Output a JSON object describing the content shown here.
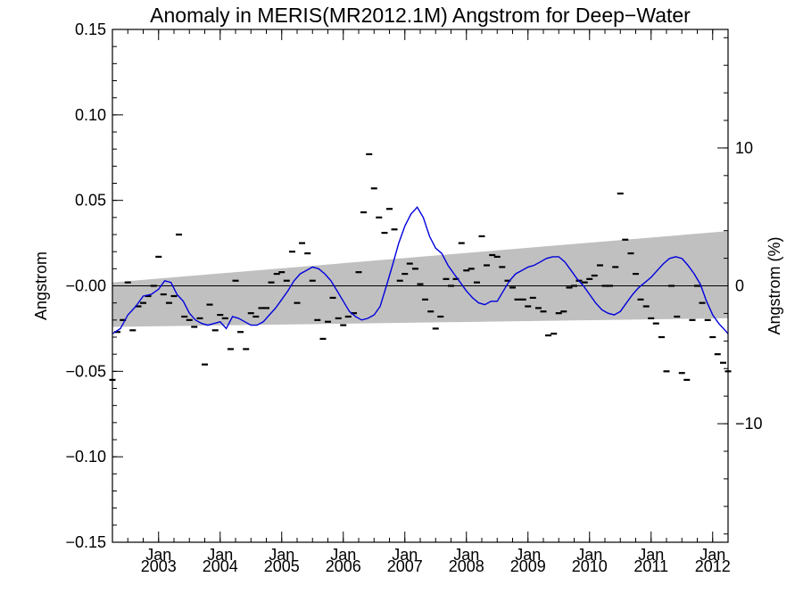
{
  "chart_data": {
    "type": "line",
    "title": "Anomaly in MERIS(MR2012.1M) Angstrom for Deep−Water",
    "ylabel": "Angstrom",
    "ylabel_right": "Angstrom (%)",
    "xlim": [
      2002.25,
      2012.25
    ],
    "ylim": [
      -0.15,
      0.15
    ],
    "ylim_right": [
      -18.6,
      18.6
    ],
    "x_tick_values": [
      2003,
      2004,
      2005,
      2006,
      2007,
      2008,
      2009,
      2010,
      2011,
      2012
    ],
    "x_tick_labels": [
      [
        "Jan",
        "2003"
      ],
      [
        "Jan",
        "2004"
      ],
      [
        "Jan",
        "2005"
      ],
      [
        "Jan",
        "2006"
      ],
      [
        "Jan",
        "2007"
      ],
      [
        "Jan",
        "2008"
      ],
      [
        "Jan",
        "2009"
      ],
      [
        "Jan",
        "2010"
      ],
      [
        "Jan",
        "2011"
      ],
      [
        "Jan",
        "2012"
      ]
    ],
    "y_ticks": [
      -0.15,
      -0.1,
      -0.05,
      0,
      0.05,
      0.1,
      0.15
    ],
    "y_tick_labels": [
      "−0.15",
      "−0.10",
      "−0.05",
      "−0.00",
      "0.05",
      "0.10",
      "0.15"
    ],
    "y_ticks_right": [
      -10,
      0,
      10
    ],
    "y_tick_labels_right": [
      "−10",
      "0",
      "10"
    ],
    "zero_line": 0,
    "trend_band": {
      "x": [
        2002.25,
        2012.25
      ],
      "upper": [
        0.002,
        0.032
      ],
      "lower": [
        -0.024,
        -0.019
      ],
      "color": "#c0c0c0"
    },
    "series": [
      {
        "style": "markers",
        "color": "#000000",
        "x": [
          2002.25,
          2002.33,
          2002.42,
          2002.5,
          2002.58,
          2002.67,
          2002.75,
          2002.83,
          2002.92,
          2003.0,
          2003.08,
          2003.17,
          2003.25,
          2003.33,
          2003.42,
          2003.5,
          2003.58,
          2003.67,
          2003.75,
          2003.83,
          2003.92,
          2004.0,
          2004.08,
          2004.17,
          2004.25,
          2004.33,
          2004.42,
          2004.5,
          2004.58,
          2004.67,
          2004.75,
          2004.83,
          2004.92,
          2005.0,
          2005.08,
          2005.17,
          2005.25,
          2005.33,
          2005.42,
          2005.5,
          2005.58,
          2005.67,
          2005.75,
          2005.83,
          2005.92,
          2006.0,
          2006.08,
          2006.17,
          2006.25,
          2006.33,
          2006.42,
          2006.5,
          2006.58,
          2006.67,
          2006.75,
          2006.83,
          2006.92,
          2007.0,
          2007.08,
          2007.17,
          2007.25,
          2007.33,
          2007.42,
          2007.5,
          2007.58,
          2007.67,
          2007.75,
          2007.83,
          2007.92,
          2008.0,
          2008.08,
          2008.17,
          2008.25,
          2008.33,
          2008.42,
          2008.5,
          2008.58,
          2008.67,
          2008.75,
          2008.83,
          2008.92,
          2009.0,
          2009.08,
          2009.17,
          2009.25,
          2009.33,
          2009.42,
          2009.5,
          2009.58,
          2009.67,
          2009.75,
          2009.83,
          2009.92,
          2010.0,
          2010.08,
          2010.17,
          2010.25,
          2010.33,
          2010.42,
          2010.5,
          2010.58,
          2010.67,
          2010.75,
          2010.83,
          2010.92,
          2011.0,
          2011.08,
          2011.17,
          2011.25,
          2011.33,
          2011.42,
          2011.5,
          2011.58,
          2011.67,
          2011.75,
          2011.83,
          2011.92,
          2012.0,
          2012.08,
          2012.17,
          2012.25
        ],
        "y": [
          -0.055,
          -0.027,
          -0.02,
          0.002,
          -0.026,
          -0.012,
          -0.01,
          -0.006,
          0.0,
          0.017,
          -0.005,
          -0.01,
          -0.006,
          0.03,
          -0.018,
          -0.02,
          -0.024,
          -0.019,
          -0.046,
          -0.011,
          -0.026,
          -0.017,
          -0.019,
          -0.037,
          0.003,
          -0.027,
          -0.037,
          -0.016,
          -0.018,
          -0.013,
          -0.013,
          0.002,
          0.007,
          0.008,
          0.003,
          0.02,
          -0.01,
          0.025,
          0.019,
          0.003,
          -0.02,
          -0.031,
          -0.021,
          -0.007,
          -0.019,
          -0.023,
          -0.018,
          -0.016,
          0.008,
          0.043,
          0.077,
          0.057,
          0.04,
          0.031,
          0.045,
          0.033,
          0.003,
          0.007,
          0.013,
          0.01,
          0.001,
          -0.008,
          -0.015,
          -0.025,
          -0.018,
          0.004,
          0.0,
          0.004,
          0.025,
          0.009,
          0.01,
          0.002,
          0.029,
          0.012,
          0.018,
          0.017,
          0.011,
          0.003,
          -0.001,
          -0.008,
          -0.008,
          -0.012,
          -0.007,
          -0.013,
          -0.015,
          -0.029,
          -0.028,
          -0.016,
          -0.015,
          -0.001,
          0.0,
          0.003,
          0.002,
          0.004,
          0.006,
          0.012,
          0.0,
          0.0,
          0.011,
          0.054,
          0.027,
          0.019,
          0.007,
          -0.008,
          -0.012,
          -0.019,
          -0.022,
          -0.03,
          -0.05,
          0.0,
          -0.018,
          -0.051,
          -0.055,
          -0.02,
          0.0,
          -0.01,
          -0.02,
          -0.03,
          -0.04,
          -0.045,
          -0.05
        ]
      },
      {
        "style": "line",
        "color": "#0000dd",
        "x": [
          2002.25,
          2002.38,
          2002.5,
          2002.63,
          2002.75,
          2002.88,
          2003.0,
          2003.1,
          2003.2,
          2003.3,
          2003.4,
          2003.5,
          2003.6,
          2003.7,
          2003.8,
          2003.9,
          2004.0,
          2004.1,
          2004.2,
          2004.3,
          2004.4,
          2004.5,
          2004.6,
          2004.7,
          2004.8,
          2004.9,
          2005.0,
          2005.1,
          2005.2,
          2005.3,
          2005.4,
          2005.5,
          2005.6,
          2005.7,
          2005.8,
          2005.9,
          2006.0,
          2006.1,
          2006.2,
          2006.3,
          2006.4,
          2006.5,
          2006.6,
          2006.7,
          2006.8,
          2006.9,
          2007.0,
          2007.1,
          2007.2,
          2007.3,
          2007.4,
          2007.5,
          2007.6,
          2007.7,
          2007.8,
          2007.9,
          2008.0,
          2008.1,
          2008.2,
          2008.3,
          2008.4,
          2008.5,
          2008.6,
          2008.7,
          2008.8,
          2008.9,
          2009.0,
          2009.1,
          2009.2,
          2009.3,
          2009.4,
          2009.5,
          2009.6,
          2009.7,
          2009.8,
          2009.9,
          2010.0,
          2010.1,
          2010.2,
          2010.3,
          2010.4,
          2010.5,
          2010.6,
          2010.7,
          2010.8,
          2010.9,
          2011.0,
          2011.1,
          2011.2,
          2011.3,
          2011.4,
          2011.5,
          2011.6,
          2011.7,
          2011.8,
          2011.9,
          2012.0,
          2012.1,
          2012.2,
          2012.25
        ],
        "y": [
          -0.028,
          -0.025,
          -0.017,
          -0.012,
          -0.006,
          -0.005,
          -0.002,
          0.003,
          0.002,
          -0.005,
          -0.009,
          -0.016,
          -0.02,
          -0.022,
          -0.023,
          -0.022,
          -0.021,
          -0.025,
          -0.018,
          -0.019,
          -0.021,
          -0.023,
          -0.023,
          -0.021,
          -0.017,
          -0.013,
          -0.008,
          -0.003,
          0.003,
          0.007,
          0.009,
          0.011,
          0.01,
          0.007,
          0.003,
          -0.003,
          -0.009,
          -0.015,
          -0.018,
          -0.02,
          -0.019,
          -0.017,
          -0.012,
          0.0,
          0.012,
          0.025,
          0.035,
          0.042,
          0.046,
          0.04,
          0.029,
          0.022,
          0.019,
          0.012,
          0.007,
          0.002,
          -0.003,
          -0.007,
          -0.01,
          -0.011,
          -0.009,
          -0.009,
          -0.003,
          0.003,
          0.007,
          0.009,
          0.011,
          0.012,
          0.014,
          0.016,
          0.017,
          0.017,
          0.014,
          0.009,
          0.004,
          0.0,
          -0.005,
          -0.01,
          -0.014,
          -0.016,
          -0.017,
          -0.015,
          -0.01,
          -0.005,
          -0.001,
          0.002,
          0.005,
          0.009,
          0.013,
          0.016,
          0.017,
          0.016,
          0.012,
          0.007,
          0.001,
          -0.009,
          -0.017,
          -0.022,
          -0.026,
          -0.028
        ]
      }
    ]
  }
}
